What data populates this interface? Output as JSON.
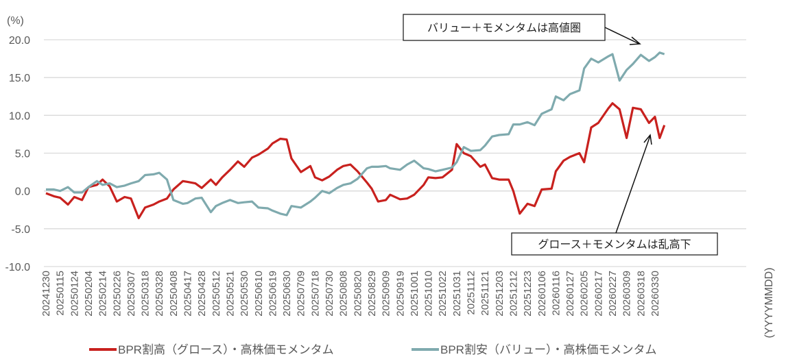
{
  "chart_data": {
    "type": "line",
    "title": "",
    "ylabel": "(%)",
    "xlabel": "(YYYYMMDD)",
    "ylim": [
      -10,
      20
    ],
    "yticks": [
      "20.0",
      "15.0",
      "10.0",
      "5.0",
      "0.0",
      "-5.0",
      "-10.0"
    ],
    "ytick_values": [
      20,
      15,
      10,
      5,
      0,
      -5,
      -10
    ],
    "grid": true,
    "legend_position": "bottom",
    "xticks": [
      "20241230",
      "20250115",
      "20250124",
      "20250204",
      "20250214",
      "20250226",
      "20250307",
      "20250318",
      "20250328",
      "20250408",
      "20250417",
      "20250428",
      "20250512",
      "20250521",
      "20250530",
      "20250610",
      "20250619",
      "20250630",
      "20250709",
      "20250718",
      "20250730",
      "20250808",
      "20250820",
      "20250829",
      "20250909",
      "20250919",
      "20251001",
      "20251010",
      "20251022",
      "20251031",
      "20251112",
      "20251121",
      "20251203",
      "20251212",
      "20251223",
      "20260106",
      "20260116",
      "20260127",
      "20260205",
      "20260217",
      "20260227",
      "20260309",
      "20260318",
      "20260330"
    ],
    "x": [
      "20241230",
      "20250108",
      "20250115",
      "20250120",
      "20250124",
      "20250130",
      "20250204",
      "20250210",
      "20250214",
      "20250220",
      "20250226",
      "20250303",
      "20250307",
      "20250313",
      "20250318",
      "20250324",
      "20250328",
      "20250403",
      "20250408",
      "20250414",
      "20250417",
      "20250423",
      "20250428",
      "20250507",
      "20250512",
      "20250516",
      "20250521",
      "20250526",
      "20250530",
      "20250605",
      "20250610",
      "20250616",
      "20250619",
      "20250625",
      "20250630",
      "20250703",
      "20250709",
      "20250715",
      "20250718",
      "20250724",
      "20250730",
      "20250804",
      "20250808",
      "20250814",
      "20250820",
      "20250826",
      "20250829",
      "20250903",
      "20250909",
      "20250912",
      "20250919",
      "20250925",
      "20251001",
      "20251007",
      "20251010",
      "20251016",
      "20251022",
      "20251028",
      "20251031",
      "20251106",
      "20251112",
      "20251118",
      "20251121",
      "20251127",
      "20251203",
      "20251209",
      "20251212",
      "20251217",
      "20251223",
      "20251230",
      "20260106",
      "20260113",
      "20260116",
      "20260122",
      "20260127",
      "20260202",
      "20260205",
      "20260211",
      "20260217",
      "20260224",
      "20260227",
      "20260304",
      "20260309",
      "20260313",
      "20260318",
      "20260325",
      "20260330",
      "20260403",
      "20260407"
    ],
    "series": [
      {
        "name": "BPR割高（グロース）・高株価モメンタム",
        "color": "#C8211E",
        "values": [
          -0.3,
          -0.7,
          -0.9,
          -1.8,
          -0.8,
          -1.2,
          0.5,
          0.8,
          1.5,
          0.6,
          -1.4,
          -0.8,
          -1.0,
          -3.6,
          -2.2,
          -1.8,
          -1.4,
          -1.0,
          0.2,
          1.3,
          1.2,
          1.0,
          0.4,
          1.5,
          0.8,
          1.8,
          2.8,
          3.9,
          3.2,
          4.4,
          4.8,
          5.6,
          6.3,
          6.9,
          6.8,
          4.3,
          2.5,
          3.3,
          1.8,
          1.4,
          1.9,
          2.8,
          3.3,
          3.5,
          2.6,
          1.1,
          0.3,
          -1.4,
          -1.2,
          -0.5,
          -1.1,
          -1.0,
          -0.5,
          0.8,
          1.8,
          1.7,
          1.8,
          2.8,
          6.2,
          5.0,
          4.6,
          3.2,
          3.5,
          1.7,
          1.5,
          1.5,
          0.0,
          -3.0,
          -1.7,
          -2.0,
          0.2,
          0.3,
          2.6,
          4.0,
          4.5,
          5.0,
          3.8,
          8.4,
          9.0,
          10.9,
          11.6,
          10.8,
          7.0,
          11.0,
          10.8,
          9.0,
          9.8,
          7.0,
          8.7
        ]
      },
      {
        "name": "BPR割安（バリュー）・高株価モメンタム",
        "color": "#7FAAAE",
        "values": [
          0.2,
          0.2,
          0.0,
          0.5,
          -0.2,
          -0.2,
          0.5,
          1.3,
          0.8,
          1.0,
          0.5,
          0.7,
          1.0,
          1.3,
          2.1,
          2.2,
          2.4,
          1.5,
          -1.2,
          -1.7,
          -1.6,
          -1.0,
          -0.9,
          -2.8,
          -2.0,
          -1.6,
          -1.2,
          -1.6,
          -1.5,
          -1.4,
          -2.2,
          -2.3,
          -2.6,
          -3.0,
          -3.2,
          -2.0,
          -2.2,
          -1.4,
          -0.9,
          0.0,
          -0.3,
          0.4,
          0.8,
          1.0,
          1.6,
          3.0,
          3.2,
          3.2,
          3.3,
          3.0,
          2.8,
          3.5,
          4.0,
          3.0,
          2.9,
          2.6,
          2.8,
          3.1,
          3.8,
          5.8,
          5.3,
          5.4,
          6.0,
          7.2,
          7.4,
          7.5,
          8.8,
          8.8,
          9.1,
          8.7,
          10.2,
          10.8,
          12.5,
          12.0,
          12.8,
          13.3,
          16.2,
          17.5,
          17.0,
          17.8,
          18.1,
          14.6,
          16.0,
          16.8,
          18.0,
          17.2,
          17.7,
          18.3,
          18.1
        ]
      }
    ],
    "annotations": [
      {
        "text": "バリュー＋モメンタムは高値圏",
        "points_to": "BPR割安（バリュー）・高株価モメンタム"
      },
      {
        "text": "グロース＋モメンタムは乱高下",
        "points_to": "BPR割高（グロース）・高株価モメンタム"
      }
    ]
  }
}
